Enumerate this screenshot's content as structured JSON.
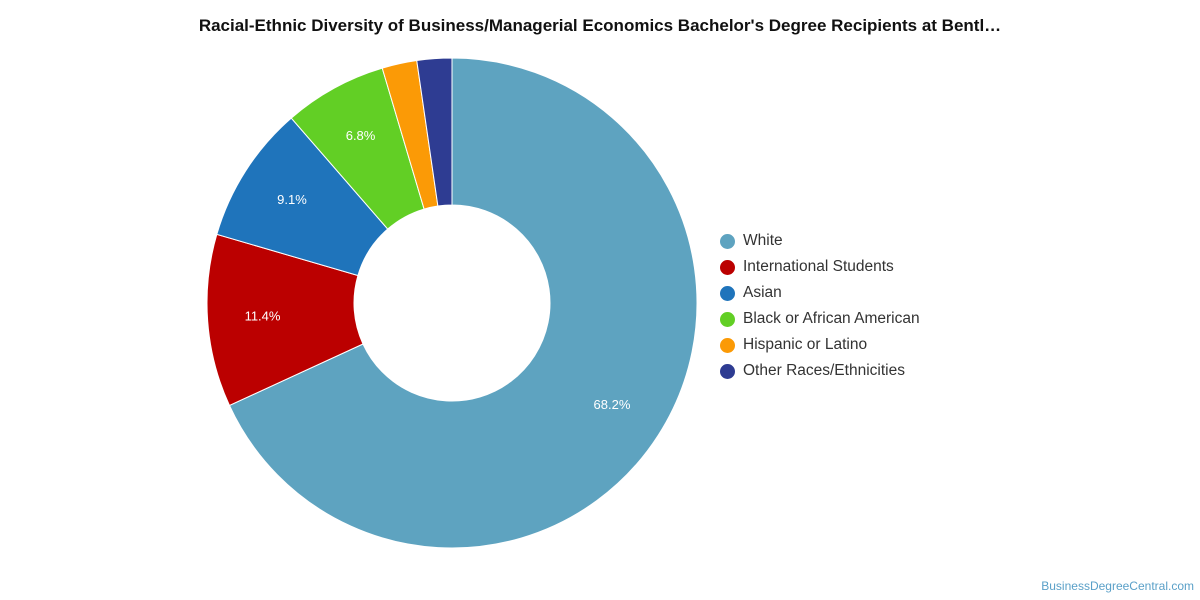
{
  "chart_data": {
    "type": "pie",
    "style": "donut",
    "title": "Racial-Ethnic Diversity of Business/Managerial Economics Bachelor's Degree Recipients at Bentl…",
    "legend_position": "right",
    "slices": [
      {
        "name": "White",
        "value": 68.2,
        "label": "68.2%",
        "color": "#5ea3c0"
      },
      {
        "name": "International Students",
        "value": 11.4,
        "label": "11.4%",
        "color": "#bb0000"
      },
      {
        "name": "Asian",
        "value": 9.1,
        "label": "9.1%",
        "color": "#1f74bb"
      },
      {
        "name": "Black or African American",
        "value": 6.8,
        "label": "6.8%",
        "color": "#62cf25"
      },
      {
        "name": "Hispanic or Latino",
        "value": 2.3,
        "label": "",
        "color": "#fb9a06"
      },
      {
        "name": "Other Races/Ethnicities",
        "value": 2.3,
        "label": "",
        "color": "#2e3c92"
      }
    ]
  },
  "source": "BusinessDegreeCentral.com"
}
